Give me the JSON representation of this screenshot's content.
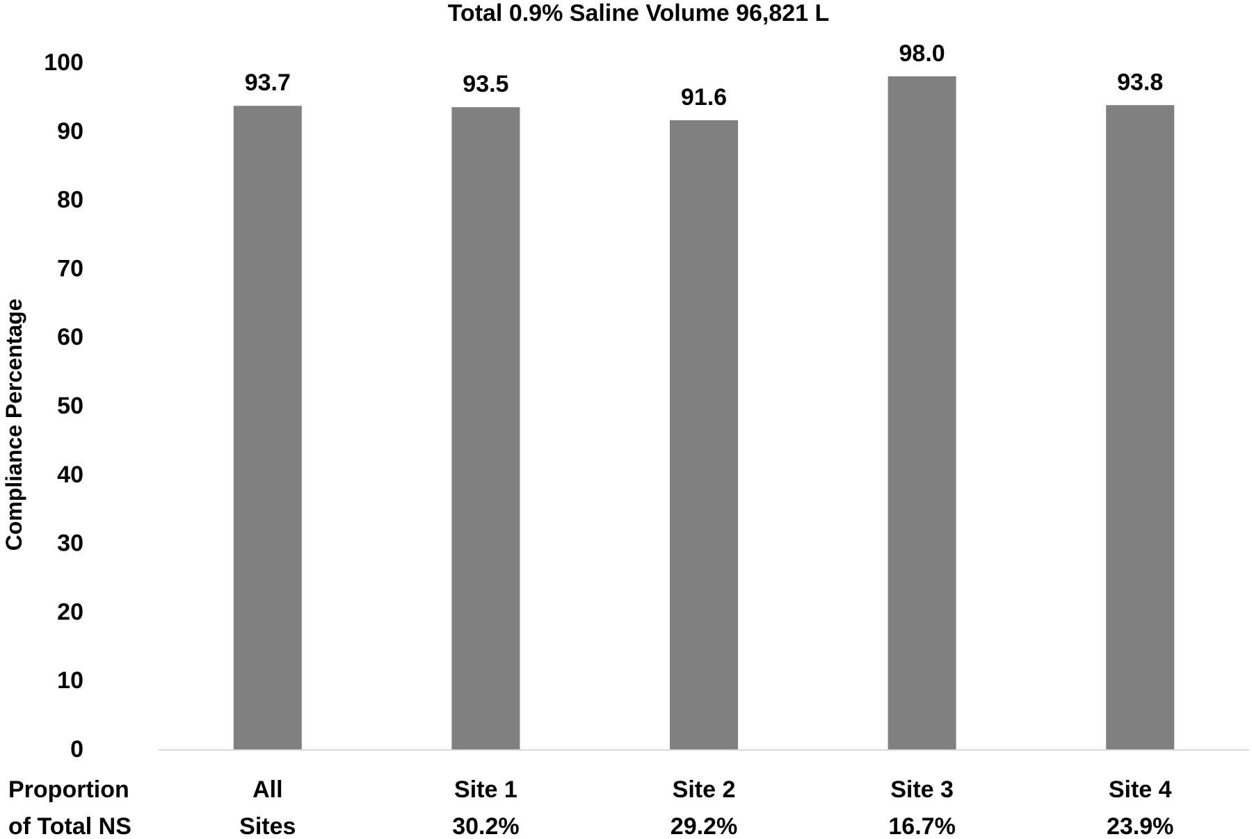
{
  "chart_data": {
    "type": "bar",
    "title": "Total 0.9% Saline Volume 96,821 L",
    "ylabel": "Compliance Percentage",
    "xlabel": "",
    "ylim": [
      0,
      100
    ],
    "yticks": [
      0,
      10,
      20,
      30,
      40,
      50,
      60,
      70,
      80,
      90,
      100
    ],
    "grid": false,
    "row_label": [
      "Proportion",
      "of Total NS"
    ],
    "categories": [
      [
        "All",
        "Sites"
      ],
      [
        "Site 1",
        "30.2%"
      ],
      [
        "Site 2",
        "29.2%"
      ],
      [
        "Site 3",
        "16.7%"
      ],
      [
        "Site 4",
        "23.9%"
      ]
    ],
    "values": [
      93.7,
      93.5,
      91.6,
      98.0,
      93.8
    ],
    "data_labels": [
      "93.7",
      "93.5",
      "91.6",
      "98.0",
      "93.8"
    ],
    "bar_color": "#808080",
    "axis_color": "#d9d9d9"
  }
}
